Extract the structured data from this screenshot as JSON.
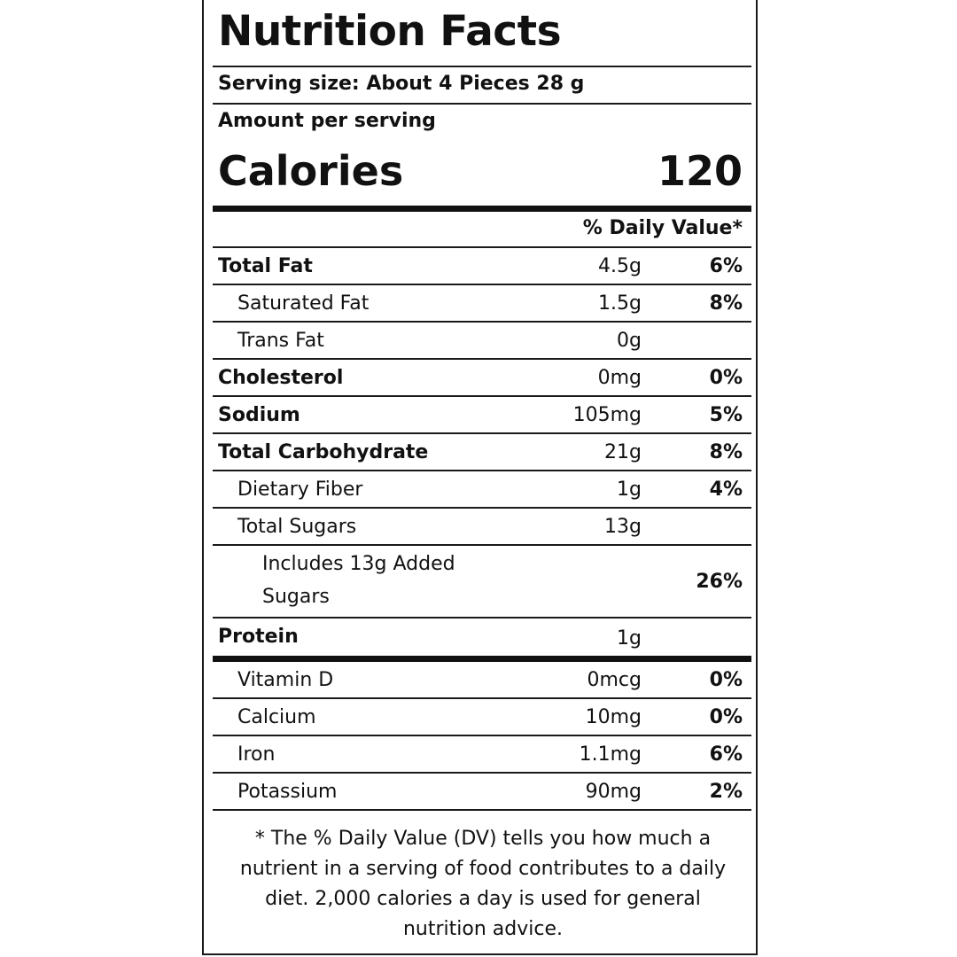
{
  "label": {
    "title": "Nutrition Facts",
    "serving_size": "Serving size: About 4 Pieces 28 g",
    "amount_per_serving": "Amount per serving",
    "calories_label": "Calories",
    "calories_value": "120",
    "dv_header": "% Daily Value*",
    "nutrients": [
      {
        "name": "Total Fat",
        "amount": "4.5g",
        "dv": "6%"
      },
      {
        "name": "Saturated Fat",
        "amount": "1.5g",
        "dv": "8%"
      },
      {
        "name": "Trans Fat",
        "amount": "0g",
        "dv": ""
      },
      {
        "name": "Cholesterol",
        "amount": "0mg",
        "dv": "0%"
      },
      {
        "name": "Sodium",
        "amount": "105mg",
        "dv": "5%"
      },
      {
        "name": "Total Carbohydrate",
        "amount": "21g",
        "dv": "8%"
      },
      {
        "name": "Dietary Fiber",
        "amount": "1g",
        "dv": "4%"
      },
      {
        "name": "Total Sugars",
        "amount": "13g",
        "dv": ""
      },
      {
        "name": "Includes 13g Added Sugars",
        "amount": "",
        "dv": "26%"
      },
      {
        "name": "Protein",
        "amount": "1g",
        "dv": ""
      }
    ],
    "vitamins": [
      {
        "name": "Vitamin D",
        "amount": "0mcg",
        "dv": "0%"
      },
      {
        "name": "Calcium",
        "amount": "10mg",
        "dv": "0%"
      },
      {
        "name": "Iron",
        "amount": "1.1mg",
        "dv": "6%"
      },
      {
        "name": "Potassium",
        "amount": "90mg",
        "dv": "2%"
      }
    ],
    "footnote": "* The % Daily Value (DV) tells you how much a nutrient in a serving of food contributes to a daily diet. 2,000 calories a day is used for general nutrition advice."
  }
}
